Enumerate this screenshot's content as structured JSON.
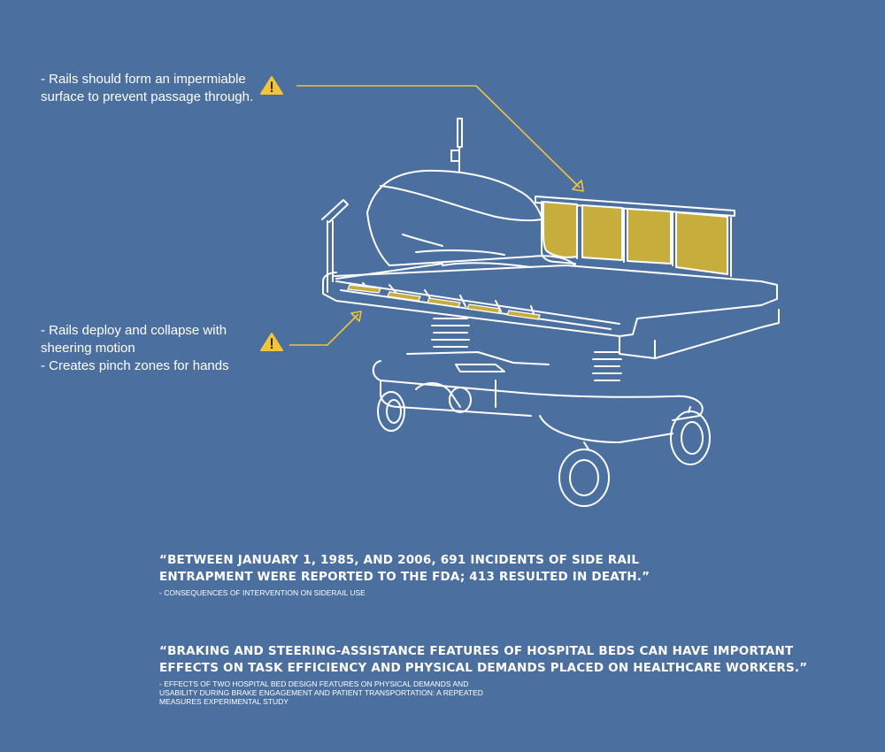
{
  "colors": {
    "background": "#4b6f9f",
    "line": "#ffffff",
    "accent": "#f2c43a",
    "rail_fill": "#c7ad3c"
  },
  "annotations": [
    {
      "icon": "warning-triangle",
      "lines": [
        "- Rails should form an impermiable",
        "surface to prevent passage through."
      ]
    },
    {
      "icon": "warning-triangle",
      "lines": [
        "- Rails deploy and collapse with",
        "sheering motion",
        "- Creates pinch zones for hands"
      ]
    }
  ],
  "quotes": [
    {
      "lines": [
        "“BETWEEN JANUARY 1, 1985, AND 2006, 691 INCIDENTS OF SIDE RAIL",
        "ENTRAPMENT WERE REPORTED TO THE FDA; 413 RESULTED IN DEATH.”"
      ],
      "source": [
        "- CONSEQUENCES OF INTERVENTION ON SIDERAIL USE"
      ]
    },
    {
      "lines": [
        "“BRAKING AND STEERING-ASSISTANCE FEATURES OF HOSPITAL BEDS CAN HAVE IMPORTANT",
        "EFFECTS ON TASK EFFICIENCY AND PHYSICAL DEMANDS PLACED ON HEALTHCARE WORKERS.”"
      ],
      "source": [
        "- EFFECTS OF TWO HOSPITAL BED DESIGN FEATURES ON PHYSICAL DEMANDS AND",
        "USABILITY DURING BRAKE ENGAGEMENT AND PATIENT TRANSPORTATION: A REPEATED",
        "MEASURES EXPERIMENTAL STUDY"
      ]
    }
  ]
}
